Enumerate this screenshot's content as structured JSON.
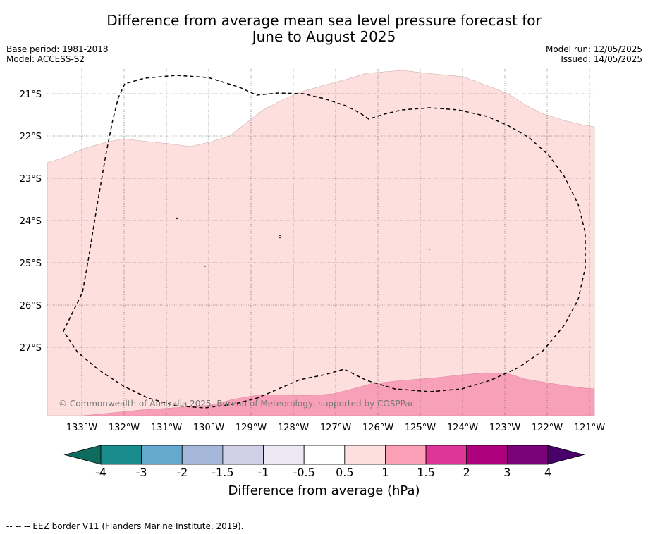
{
  "title_line1": "Difference from average mean sea level pressure forecast for",
  "title_line2": "June to August 2025",
  "meta_left": {
    "base_period": "Base period: 1981-2018",
    "model": "Model: ACCESS-S2"
  },
  "meta_right": {
    "model_run": "Model run: 12/05/2025",
    "issued": "Issued: 14/05/2025"
  },
  "lon_labels": [
    "133°W",
    "132°W",
    "131°W",
    "130°W",
    "129°W",
    "128°W",
    "127°W",
    "126°W",
    "125°W",
    "124°W",
    "123°W",
    "122°W",
    "121°W"
  ],
  "lat_labels": [
    "21°S",
    "22°S",
    "23°S",
    "24°S",
    "25°S",
    "26°S",
    "27°S"
  ],
  "copyright": "© Commonwealth of Australia 2025, Bureau of Meteorology, supported by COSPPac",
  "colorbar": {
    "ticks": [
      "-4",
      "-3",
      "-2",
      "-1.5",
      "-1",
      "-0.5",
      "0.5",
      "1",
      "1.5",
      "2",
      "3",
      "4"
    ],
    "colors": [
      "#1a8c8c",
      "#66a9cf",
      "#a6b8d9",
      "#d0d1e6",
      "#ece7f2",
      "#ffffff",
      "#fde0dd",
      "#fa9fb5",
      "#dd3497",
      "#ae017e",
      "#7a0177"
    ],
    "low_extend_color": "#0e6c5e",
    "high_extend_color": "#49006a",
    "label": "Difference from average (hPa)"
  },
  "legend_footer": "-- -- -- EEZ border V11 (Flanders Marine Institute, 2019).",
  "fill_colors": {
    "light_pink": "#fde0dd",
    "pink": "#f8a0b8"
  }
}
